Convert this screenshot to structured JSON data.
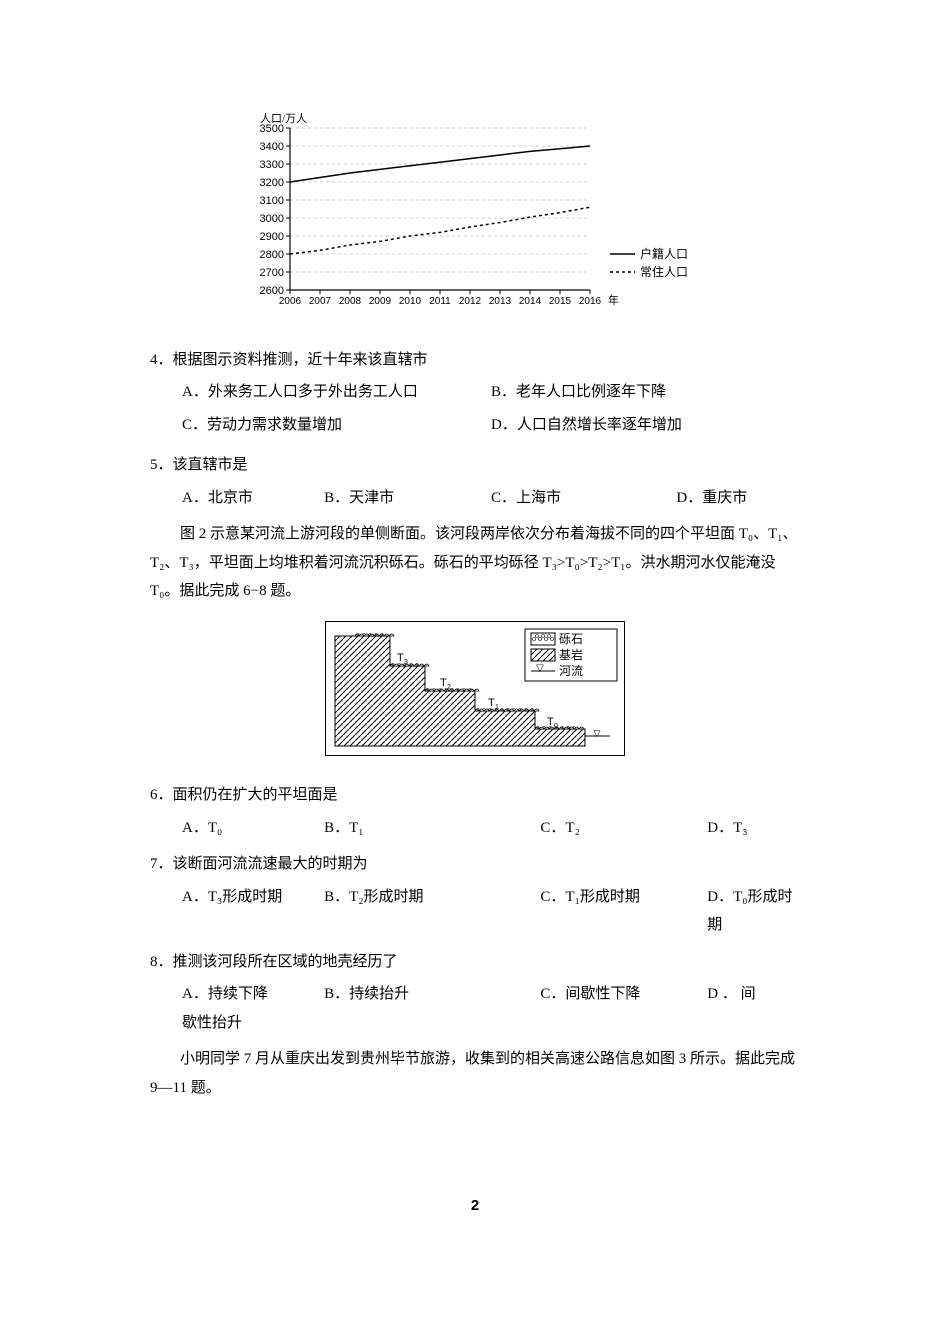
{
  "chart": {
    "title_y": "人口/万人",
    "x_label": "年",
    "y_min": 2600,
    "y_max": 3500,
    "y_step": 100,
    "y_ticks": [
      2600,
      2700,
      2800,
      2900,
      3000,
      3100,
      3200,
      3300,
      3400,
      3500
    ],
    "x_ticks": [
      "2006",
      "2007",
      "2008",
      "2009",
      "2010",
      "2011",
      "2012",
      "2013",
      "2014",
      "2015",
      "2016"
    ],
    "x_positions": [
      0,
      1,
      2,
      3,
      4,
      5,
      6,
      7,
      8,
      9,
      10
    ],
    "legend": [
      {
        "label": "户籍人口",
        "style": "solid"
      },
      {
        "label": "常住人口",
        "style": "dashed"
      }
    ],
    "series_huji": [
      3200,
      3225,
      3250,
      3270,
      3290,
      3310,
      3330,
      3350,
      3370,
      3385,
      3400
    ],
    "series_changzhu": [
      2800,
      2820,
      2850,
      2870,
      2900,
      2920,
      2950,
      2975,
      3005,
      3030,
      3060
    ],
    "grid_color": "#999999",
    "axis_color": "#000000",
    "line_color": "#000000",
    "background": "#ffffff",
    "font_size": 11
  },
  "q4": {
    "text": "4．根据图示资料推测，近十年来该直辖市",
    "a": "A．外来务工人口多于外出务工人口",
    "b": "B．老年人口比例逐年下降",
    "c": "C．劳动力需求数量增加",
    "d": "D．人口自然增长率逐年增加"
  },
  "q5": {
    "text": "5．该直辖市是",
    "a": "A．北京市",
    "b": "B．天津市",
    "c": "C．上海市",
    "d": "D．重庆市"
  },
  "passage2": "图 2 示意某河流上游河段的单侧断面。该河段两岸依次分布着海拔不同的四个平坦面 T₀、T₁、T₂、T₃，平坦面上均堆积着河流沉积砾石。砾石的平均砾径 T₃>T₀>T₂>T₁。洪水期河水仅能淹没 T₀。据此完成 6−8 题。",
  "diagram": {
    "legend": [
      {
        "label": "砾石",
        "pattern": "dots"
      },
      {
        "label": "基岩",
        "pattern": "hatch"
      },
      {
        "label": "河流",
        "pattern": "water"
      }
    ],
    "labels": [
      "T₀",
      "T₁",
      "T₂",
      "T₃"
    ],
    "background": "#ffffff",
    "line_color": "#000000"
  },
  "q6": {
    "text": "6．面积仍在扩大的平坦面是",
    "a": "A．T₀",
    "b": "B．T₁",
    "c": "C．T₂",
    "d": "D．T₃"
  },
  "q7": {
    "text": "7．该断面河流流速最大的时期为",
    "a": "A．T₃形成时期",
    "b": "B．T₂形成时期",
    "c": "C．T₁形成时期",
    "d": "D．T₀形成时期"
  },
  "q8": {
    "text": "8．推测该河段所在区域的地壳经历了",
    "a": "A．持续下降",
    "b": "B．持续抬升",
    "c": "C．间歇性下降",
    "d_1": "D ． 间",
    "d_2": "歇性抬升"
  },
  "passage3": "小明同学 7 月从重庆出发到贵州毕节旅游，收集到的相关高速公路信息如图 3 所示。据此完成 9—11 题。",
  "page_number": "2"
}
